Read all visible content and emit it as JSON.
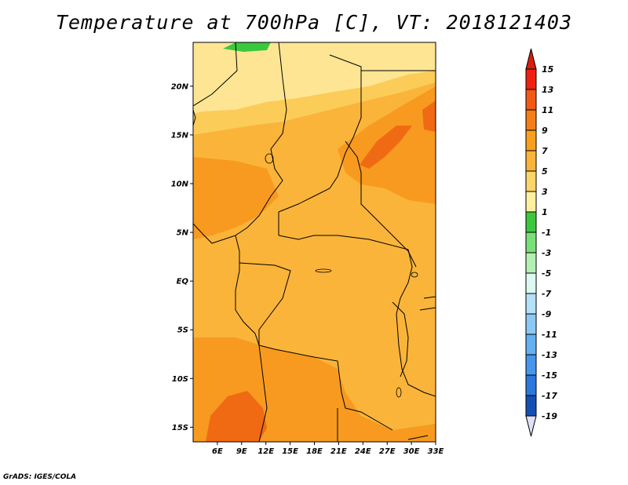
{
  "title": "Temperature at 700hPa [C], VT: 2018121403",
  "credit": "GrADS: IGES/COLA",
  "map": {
    "lon_range": [
      3,
      33
    ],
    "lat_range": [
      -16.5,
      24.5
    ],
    "lon_ticks": [
      "6E",
      "9E",
      "12E",
      "15E",
      "18E",
      "21E",
      "24E",
      "27E",
      "30E",
      "33E"
    ],
    "lon_tick_values": [
      6,
      9,
      12,
      15,
      18,
      21,
      24,
      27,
      30,
      33
    ],
    "lat_ticks": [
      "15S",
      "10S",
      "5S",
      "EQ",
      "5N",
      "10N",
      "15N",
      "20N"
    ],
    "lat_tick_values": [
      -15,
      -10,
      -5,
      0,
      5,
      10,
      15,
      20
    ],
    "fields": {
      "base_color": "#fab43a",
      "zones": [
        {
          "name": "north-pale",
          "color": "#fde593"
        },
        {
          "name": "north-light",
          "color": "#fccc58"
        },
        {
          "name": "east-warm",
          "color": "#f79a1f"
        },
        {
          "name": "south-warm",
          "color": "#f79a1f"
        },
        {
          "name": "west-coast-warm",
          "color": "#f79a1f"
        },
        {
          "name": "sw-hot",
          "color": "#f06a14"
        },
        {
          "name": "e-hot",
          "color": "#f06a14"
        },
        {
          "name": "top-green",
          "color": "#3cc83c"
        }
      ]
    }
  },
  "colorbar": {
    "levels": [
      "15",
      "13",
      "11",
      "9",
      "7",
      "5",
      "3",
      "1",
      "-1",
      "-3",
      "-5",
      "-7",
      "-9",
      "-11",
      "-13",
      "-15",
      "-17",
      "-19"
    ],
    "colors": [
      "#f02010",
      "#f25a14",
      "#f47d18",
      "#f7a01e",
      "#fab43a",
      "#fcd56a",
      "#fdf0a0",
      "#3cc83c",
      "#78e078",
      "#b4f0b4",
      "#dcf8f0",
      "#b4e0f8",
      "#8cc8f4",
      "#64b0f0",
      "#4896ec",
      "#2c78dc",
      "#1450b4",
      "#0a2880"
    ],
    "top_arrow_color": "#d81e0a",
    "bottom_arrow_color": "#e0e0f8"
  }
}
